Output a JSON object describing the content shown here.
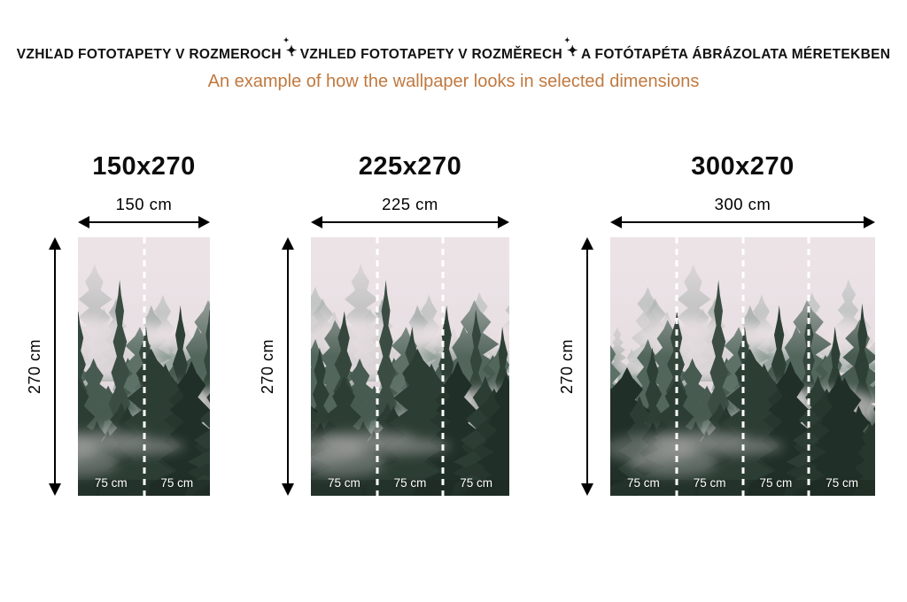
{
  "header": {
    "title_parts": [
      "VZHĽAD FOTOTAPETY V ROZMEROCH",
      "VZHLED FOTOTAPETY V ROZMĚRECH",
      "A FOTÓTAPÉTA ÁBRÁZOLATA MÉRETEKBEN"
    ],
    "separator": "✦",
    "subtitle": "An example of how the wallpaper looks in selected dimensions"
  },
  "colors": {
    "header_text": "#111111",
    "subtitle_text": "#c1793f",
    "dimension_lines": "#000000",
    "segment_label_text": "#ffffff",
    "fog_pink": "#e8dfe3",
    "trees_far": "#8a9a93",
    "trees_mid": "#52665c",
    "trees_dark": "#243329"
  },
  "image": {
    "name": "misty-pine-forest-photo"
  },
  "panels": [
    {
      "title": "150x270",
      "width_cm": 150,
      "height_cm": 270,
      "width_label": "150 cm",
      "height_label": "270 cm",
      "segments": [
        "75 cm",
        "75 cm"
      ]
    },
    {
      "title": "225x270",
      "width_cm": 225,
      "height_cm": 270,
      "width_label": "225 cm",
      "height_label": "270 cm",
      "segments": [
        "75 cm",
        "75 cm",
        "75 cm"
      ]
    },
    {
      "title": "300x270",
      "width_cm": 300,
      "height_cm": 270,
      "width_label": "300 cm",
      "height_label": "270 cm",
      "segments": [
        "75 cm",
        "75 cm",
        "75 cm",
        "75 cm"
      ]
    }
  ]
}
